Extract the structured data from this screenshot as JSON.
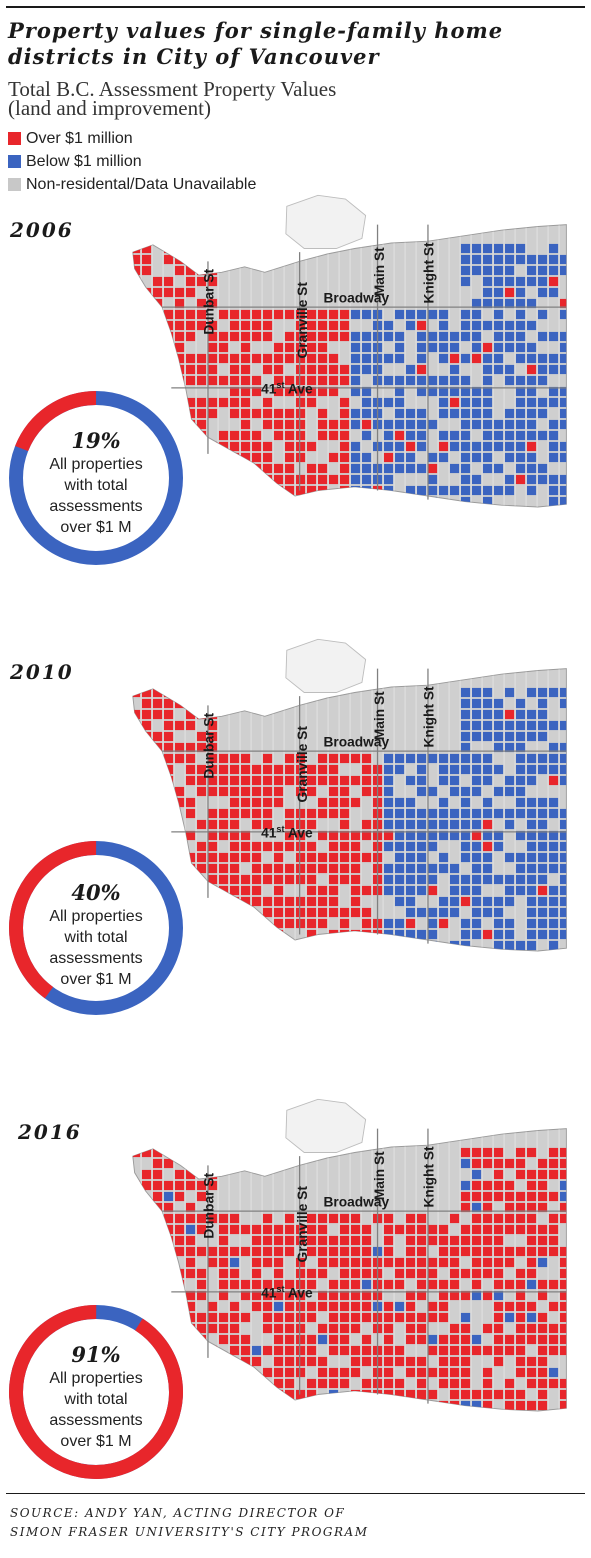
{
  "title_line1": "Property values for single-family home",
  "title_line2": "districts in City of Vancouver",
  "subtitle_line1": "Total B.C. Assessment Property Values",
  "subtitle_line2": "(land and improvement)",
  "legend": [
    {
      "label": "Over $1 million",
      "color": "#e8262b"
    },
    {
      "label": "Below $1 million",
      "color": "#3b64c0"
    },
    {
      "label": "Non-residental/Data Unavailable",
      "color": "#c8c8c8"
    }
  ],
  "colors": {
    "over": "#e8262b",
    "below": "#3b64c0",
    "other": "#cfcfcf",
    "land_outline": "#9a9a9a"
  },
  "street_labels": {
    "dunbar": "Dunbar St",
    "granville": "Granville St",
    "main": "Main St",
    "knight": "Knight St",
    "broadway": "Broadway",
    "ave41_num": "41",
    "ave41_sup": "st",
    "ave41_rest": " Ave"
  },
  "panels": [
    {
      "year": "2006",
      "percent_value": 19,
      "percent_label": "19%",
      "lines": [
        "All properties",
        "with total",
        "assessments",
        "over $1 M"
      ],
      "red_boundary_x": 355
    },
    {
      "year": "2010",
      "percent_value": 40,
      "percent_label": "40%",
      "lines": [
        "All properties",
        "with total",
        "assessments",
        "over $1 M"
      ],
      "red_boundary_x": 385
    },
    {
      "year": "2016",
      "percent_value": 91,
      "percent_label": "91%",
      "lines": [
        "All properties",
        "with total",
        "assessments",
        "over $1 M"
      ],
      "red_boundary_x": 1000
    }
  ],
  "source_line1": "SOURCE: ANDY YAN, ACTING DIRECTOR OF",
  "source_line2": "SIMON FRASER UNIVERSITY'S CITY PROGRAM"
}
